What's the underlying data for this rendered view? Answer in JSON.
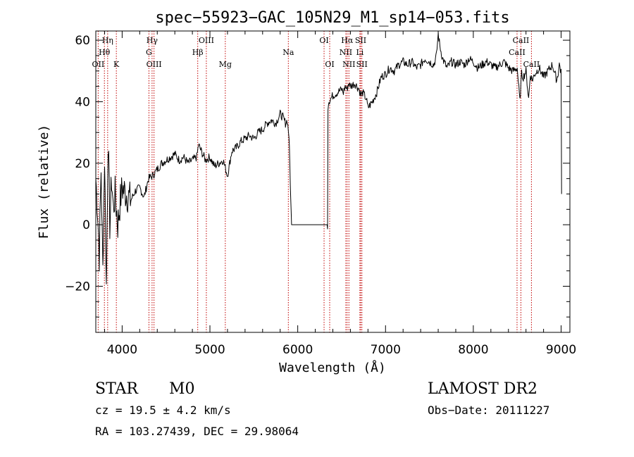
{
  "chart_data": {
    "type": "line",
    "title": "spec−55923−GAC_105N29_M1_sp14−053.fits",
    "xlabel": "Wavelength (Å)",
    "ylabel": "Flux (relative)",
    "xlim": [
      3700,
      9100
    ],
    "ylim": [
      -35,
      63
    ],
    "xticks": [
      4000,
      5000,
      6000,
      7000,
      8000,
      9000
    ],
    "xtick_labels": [
      "4000",
      "5000",
      "6000",
      "7000",
      "8000",
      "9000"
    ],
    "yticks": [
      -20,
      0,
      20,
      40,
      60
    ],
    "ytick_labels": [
      "−20",
      "0",
      "20",
      "40",
      "60"
    ],
    "x_minor_step": 200,
    "y_minor_step": 5,
    "series": [
      {
        "x": [
          3700,
          3720,
          3740,
          3760,
          3780,
          3800,
          3820,
          3840,
          3860,
          3880,
          3900,
          3920,
          3950,
          3980,
          4000,
          4050,
          4100,
          4150,
          4200,
          4250,
          4300,
          4350,
          4400,
          4450,
          4500,
          4550,
          4600,
          4650,
          4700,
          4750,
          4800,
          4850,
          4870,
          4900,
          4950,
          5000,
          5050,
          5100,
          5150,
          5200,
          5250,
          5300,
          5350,
          5400,
          5450,
          5500,
          5550,
          5600,
          5650,
          5700,
          5750,
          5800,
          5830,
          5860,
          5880,
          5900,
          5910,
          5920,
          5930,
          6340,
          6345,
          6350,
          6400,
          6450,
          6500,
          6520,
          6540,
          6560,
          6580,
          6600,
          6650,
          6700,
          6720,
          6740,
          6760,
          6780,
          6800,
          6850,
          6900,
          6950,
          7000,
          7050,
          7100,
          7150,
          7200,
          7250,
          7300,
          7350,
          7400,
          7450,
          7500,
          7550,
          7580,
          7600,
          7620,
          7650,
          7700,
          7750,
          7800,
          7850,
          7900,
          7950,
          8000,
          8050,
          8100,
          8150,
          8200,
          8250,
          8300,
          8350,
          8400,
          8450,
          8500,
          8530,
          8550,
          8570,
          8600,
          8630,
          8650,
          8670,
          8700,
          8750,
          8800,
          8850,
          8900,
          8950,
          8980,
          9000,
          9001,
          9005
        ],
        "y": [
          15,
          5,
          -10,
          18,
          -15,
          22,
          -20,
          28,
          0,
          15,
          5,
          10,
          0,
          8,
          12,
          10,
          8,
          11,
          12,
          9,
          15,
          16,
          18,
          20,
          21,
          22,
          23,
          21,
          22,
          20,
          21,
          22,
          26,
          24,
          21,
          22,
          19,
          20,
          21,
          16,
          24,
          25,
          27,
          28,
          29,
          28,
          30,
          31,
          33,
          34,
          33,
          36,
          35,
          33,
          34,
          29,
          20,
          8,
          0,
          0,
          38,
          40,
          42,
          43,
          44,
          43,
          45,
          44,
          46,
          45,
          46,
          44,
          42,
          43,
          42,
          41,
          38,
          40,
          43,
          48,
          49,
          51,
          50,
          52,
          53,
          52,
          53,
          51,
          52,
          54,
          53,
          52,
          55,
          62,
          58,
          54,
          51,
          53,
          52,
          53,
          52,
          54,
          53,
          51,
          52,
          53,
          52,
          51,
          52,
          53,
          51,
          50,
          51,
          40,
          49,
          48,
          50,
          41,
          49,
          47,
          49,
          51,
          48,
          50,
          52,
          47,
          52,
          50,
          40,
          10
        ]
      }
    ],
    "lines": [
      {
        "label": "OII",
        "wavelength": 3727,
        "row": 2
      },
      {
        "label": "Hθ",
        "wavelength": 3798,
        "row": 1
      },
      {
        "label": "Hη",
        "wavelength": 3835,
        "row": 0
      },
      {
        "label": "K",
        "wavelength": 3934,
        "row": 2
      },
      {
        "label": "G",
        "wavelength": 4305,
        "row": 1
      },
      {
        "label": "Hγ",
        "wavelength": 4341,
        "row": 0
      },
      {
        "label": "OIII",
        "wavelength": 4363,
        "row": 2
      },
      {
        "label": "Hβ",
        "wavelength": 4861,
        "row": 1
      },
      {
        "label": "OIII",
        "wavelength": 4959,
        "row": 0
      },
      {
        "label": "Mg",
        "wavelength": 5175,
        "row": 2
      },
      {
        "label": "Na",
        "wavelength": 5893,
        "row": 1
      },
      {
        "label": "OI",
        "wavelength": 6300,
        "row": 0
      },
      {
        "label": "OI",
        "wavelength": 6364,
        "row": 2
      },
      {
        "label": "NII",
        "wavelength": 6548,
        "row": 1
      },
      {
        "label": "Hα",
        "wavelength": 6563,
        "row": 0
      },
      {
        "label": "NII",
        "wavelength": 6583,
        "row": 2
      },
      {
        "label": "Li",
        "wavelength": 6708,
        "row": 1
      },
      {
        "label": "SII",
        "wavelength": 6717,
        "row": 0
      },
      {
        "label": "SII",
        "wavelength": 6731,
        "row": 2
      },
      {
        "label": "CaII",
        "wavelength": 8498,
        "row": 1
      },
      {
        "label": "CaII",
        "wavelength": 8542,
        "row": 0
      },
      {
        "label": "CaII",
        "wavelength": 8662,
        "row": 2
      }
    ]
  },
  "info": {
    "object_type": "STAR",
    "spectral_class": "M0",
    "survey": "LAMOST DR2",
    "redshift": "cz = 19.5 ± 4.2 km/s",
    "obs_date": "Obs−Date: 20111227",
    "coords": "RA = 103.27439, DEC =  29.98064"
  }
}
